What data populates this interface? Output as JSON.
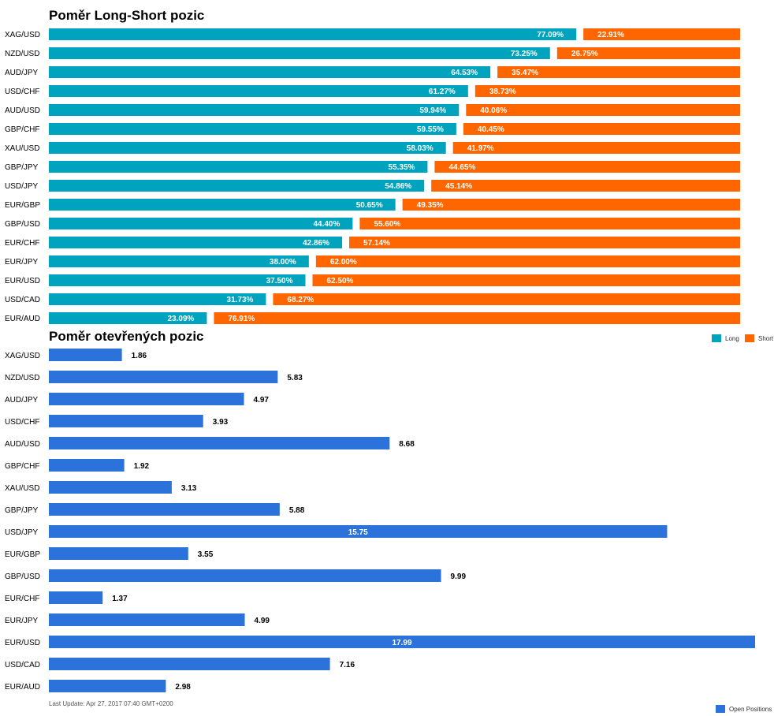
{
  "chart_data": [
    {
      "type": "bar",
      "orientation": "horizontal",
      "stacked": true,
      "title": "Poměr Long-Short pozic",
      "categories": [
        "XAG/USD",
        "NZD/USD",
        "AUD/JPY",
        "USD/CHF",
        "AUD/USD",
        "GBP/CHF",
        "XAU/USD",
        "GBP/JPY",
        "USD/JPY",
        "EUR/GBP",
        "GBP/USD",
        "EUR/CHF",
        "EUR/JPY",
        "EUR/USD",
        "USD/CAD",
        "EUR/AUD"
      ],
      "series": [
        {
          "name": "Long",
          "color": "#00a3bd",
          "values": [
            77.09,
            73.25,
            64.53,
            61.27,
            59.94,
            59.55,
            58.03,
            55.35,
            54.86,
            50.65,
            44.4,
            42.86,
            38.0,
            37.5,
            31.73,
            23.09
          ],
          "labels": [
            "77.09%",
            "73.25%",
            "64.53%",
            "61.27%",
            "59.94%",
            "59.55%",
            "58.03%",
            "55.35%",
            "54.86%",
            "50.65%",
            "44.40%",
            "42.86%",
            "38.00%",
            "37.50%",
            "31.73%",
            "23.09%"
          ]
        },
        {
          "name": "Short",
          "color": "#ff6600",
          "values": [
            22.91,
            26.75,
            35.47,
            38.73,
            40.06,
            40.45,
            41.97,
            44.65,
            45.14,
            49.35,
            55.6,
            57.14,
            62.0,
            62.5,
            68.27,
            76.91
          ],
          "labels": [
            "22.91%",
            "26.75%",
            "35.47%",
            "38.73%",
            "40.06%",
            "40.45%",
            "41.97%",
            "44.65%",
            "45.14%",
            "49.35%",
            "55.60%",
            "57.14%",
            "62.00%",
            "62.50%",
            "68.27%",
            "76.91%"
          ]
        }
      ],
      "xlim": [
        0,
        100
      ],
      "legend_position": "bottom-right"
    },
    {
      "type": "bar",
      "orientation": "horizontal",
      "title": "Poměr otevřených pozic",
      "categories": [
        "XAG/USD",
        "NZD/USD",
        "AUD/JPY",
        "USD/CHF",
        "AUD/USD",
        "GBP/CHF",
        "XAU/USD",
        "GBP/JPY",
        "USD/JPY",
        "EUR/GBP",
        "GBP/USD",
        "EUR/CHF",
        "EUR/JPY",
        "EUR/USD",
        "USD/CAD",
        "EUR/AUD"
      ],
      "series": [
        {
          "name": "Open Positions",
          "color": "#2b72db",
          "values": [
            1.86,
            5.83,
            4.97,
            3.93,
            8.68,
            1.92,
            3.13,
            5.88,
            15.75,
            3.55,
            9.99,
            1.37,
            4.99,
            17.99,
            7.16,
            2.98
          ],
          "labels": [
            "1.86",
            "5.83",
            "4.97",
            "3.93",
            "8.68",
            "1.92",
            "3.13",
            "5.88",
            "15.75",
            "3.55",
            "9.99",
            "1.37",
            "4.99",
            "17.99",
            "7.16",
            "2.98"
          ]
        }
      ],
      "xlim": [
        0,
        17.99
      ],
      "legend_position": "bottom-right"
    }
  ],
  "footer": {
    "last_update": "Last Update: Apr 27, 2017 07:40 GMT+0200"
  }
}
